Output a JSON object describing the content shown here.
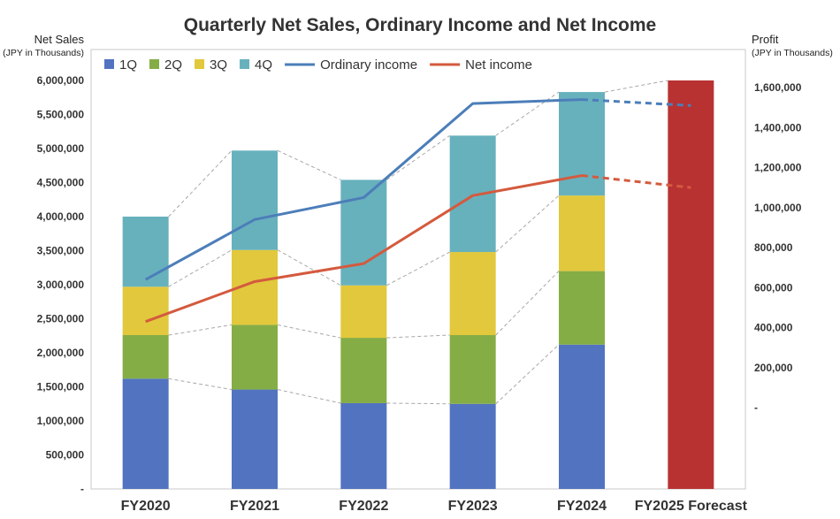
{
  "chart_data": {
    "type": "bar",
    "title": "Quarterly Net Sales, Ordinary Income and Net Income",
    "y_left": {
      "label": "Net Sales",
      "unit": "(JPY in Thousands)",
      "lim": [
        0,
        6000000
      ],
      "ticks": [
        0,
        500000,
        1000000,
        1500000,
        2000000,
        2500000,
        3000000,
        3500000,
        4000000,
        4500000,
        5000000,
        5500000,
        6000000
      ],
      "tick_labels": [
        "-",
        "500,000",
        "1,000,000",
        "1,500,000",
        "2,000,000",
        "2,500,000",
        "3,000,000",
        "3,500,000",
        "4,000,000",
        "4,500,000",
        "5,000,000",
        "5,500,000",
        "6,000,000"
      ]
    },
    "y_right": {
      "label": "Profit",
      "unit": "(JPY in Thousands)",
      "lim": [
        -50000,
        1630000
      ],
      "ticks": [
        0,
        200000,
        400000,
        600000,
        800000,
        1000000,
        1200000,
        1400000,
        1600000
      ],
      "tick_labels": [
        "-",
        "200,000",
        "400,000",
        "600,000",
        "800,000",
        "1,000,000",
        "1,200,000",
        "1,400,000",
        "1,600,000"
      ]
    },
    "categories": [
      "FY2020",
      "FY2021",
      "FY2022",
      "FY2023",
      "FY2024",
      "FY2025 Forecast"
    ],
    "category_colors": [
      "#333333",
      "#333333",
      "#333333",
      "#333333",
      "#333333",
      "#c0282d"
    ],
    "stacked_series": [
      {
        "name": "1Q",
        "color": "#5273c0",
        "values": [
          1620000,
          1460000,
          1260000,
          1250000,
          2120000,
          null
        ]
      },
      {
        "name": "2Q",
        "color": "#85ad45",
        "values": [
          640000,
          950000,
          960000,
          1010000,
          1080000,
          null
        ]
      },
      {
        "name": "3Q",
        "color": "#e2c83c",
        "values": [
          710000,
          1100000,
          770000,
          1220000,
          1110000,
          null
        ]
      },
      {
        "name": "4Q",
        "color": "#67b1bd",
        "values": [
          1030000,
          1460000,
          1550000,
          1710000,
          1520000,
          null
        ]
      }
    ],
    "forecast_bar": {
      "category": "FY2025 Forecast",
      "value": 6000000,
      "color": "#b83232"
    },
    "line_series": [
      {
        "name": "Ordinary income",
        "color": "#4c7eb9",
        "axis": "right",
        "values": [
          640000,
          940000,
          1050000,
          1520000,
          1540000,
          1510000
        ],
        "forecast_from_index": 4
      },
      {
        "name": "Net income",
        "color": "#d45a3e",
        "axis": "right",
        "values": [
          430000,
          630000,
          720000,
          1060000,
          1160000,
          1100000
        ],
        "forecast_from_index": 4
      }
    ],
    "legend": {
      "placement": "top-left",
      "entries": [
        "1Q",
        "2Q",
        "3Q",
        "4Q",
        "Ordinary income",
        "Net income"
      ]
    },
    "grid": false
  }
}
